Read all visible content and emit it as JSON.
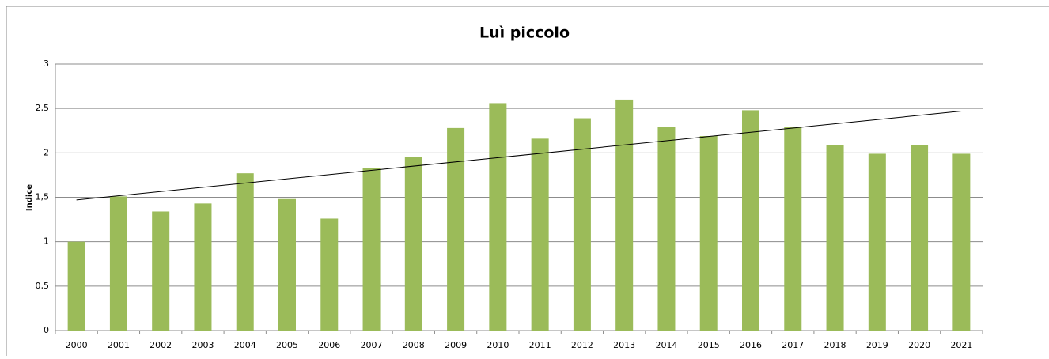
{
  "chart_data": {
    "type": "bar",
    "title": "Luì piccolo",
    "y_label": "Indice",
    "categories": [
      "2000",
      "2001",
      "2002",
      "2003",
      "2004",
      "2005",
      "2006",
      "2007",
      "2008",
      "2009",
      "2010",
      "2011",
      "2012",
      "2013",
      "2014",
      "2015",
      "2016",
      "2017",
      "2018",
      "2019",
      "2020",
      "2021"
    ],
    "values": [
      1.0,
      1.51,
      1.34,
      1.43,
      1.77,
      1.48,
      1.26,
      1.83,
      1.95,
      2.28,
      2.56,
      2.16,
      2.39,
      2.6,
      2.29,
      2.19,
      2.48,
      2.29,
      2.09,
      1.99,
      2.09,
      1.99
    ],
    "color": "#9bbb59",
    "trend": {
      "color": "#000000",
      "values": [
        1.47,
        2.47
      ]
    },
    "ylim": [
      0,
      3
    ],
    "yticks": [
      0,
      {
        "value": 0.5,
        "label": "0,5"
      },
      1,
      {
        "value": 1.5,
        "label": "1,5"
      },
      2,
      {
        "value": 2.5,
        "label": "2,5"
      },
      3
    ],
    "grid": true
  }
}
